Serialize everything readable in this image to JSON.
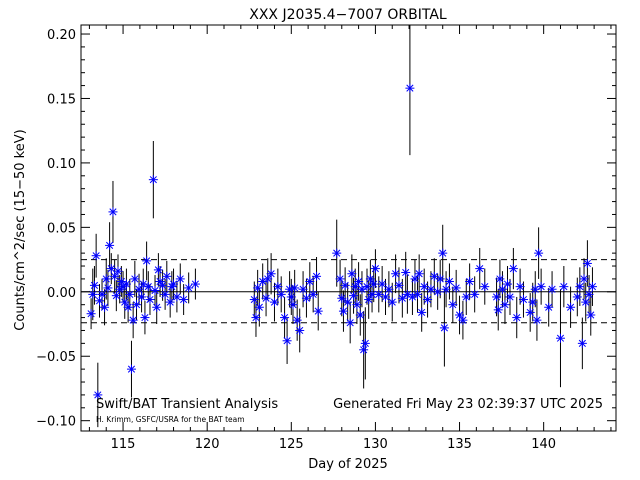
{
  "chart_data": {
    "type": "scatter",
    "title": "XXX J2035.4−7007 ORBITAL",
    "xlabel": "Day of 2025",
    "ylabel": "Counts/cm^2/sec (15−50 keV)",
    "xlim": [
      112.5,
      144.3
    ],
    "ylim": [
      -0.108,
      0.207
    ],
    "x_ticks": [
      115,
      120,
      125,
      130,
      135,
      140
    ],
    "x_tick_labels": [
      "115",
      "120",
      "125",
      "130",
      "135",
      "140"
    ],
    "y_ticks": [
      -0.1,
      -0.05,
      0.0,
      0.05,
      0.1,
      0.15,
      0.2
    ],
    "y_tick_labels": [
      "−0.10",
      "−0.05",
      "0.00",
      "0.05",
      "0.10",
      "0.15",
      "0.20"
    ],
    "reference_lines": {
      "zero": 0.0,
      "upper_dashed": 0.025,
      "lower_dashed": -0.024
    },
    "annotation_left": "Swift/BAT Transient Analysis",
    "annotation_credit": "H. Krimm, GSFC/USRA for the BAT team",
    "annotation_right": "Generated Fri May 23 02:39:37 UTC 2025",
    "marker_color": "#0000ff",
    "grid": false,
    "points": [
      {
        "x": 113.1,
        "y": -0.017,
        "e": 0.012
      },
      {
        "x": 113.2,
        "y": -0.002,
        "e": 0.02
      },
      {
        "x": 113.3,
        "y": 0.005,
        "e": 0.015
      },
      {
        "x": 113.4,
        "y": 0.028,
        "e": 0.017
      },
      {
        "x": 113.5,
        "y": -0.08,
        "e": 0.025
      },
      {
        "x": 113.6,
        "y": -0.007,
        "e": 0.013
      },
      {
        "x": 113.75,
        "y": -0.002,
        "e": 0.012
      },
      {
        "x": 113.9,
        "y": -0.012,
        "e": 0.014
      },
      {
        "x": 114.0,
        "y": 0.01,
        "e": 0.016
      },
      {
        "x": 114.1,
        "y": 0.003,
        "e": 0.014
      },
      {
        "x": 114.2,
        "y": 0.036,
        "e": 0.018
      },
      {
        "x": 114.3,
        "y": 0.018,
        "e": 0.012
      },
      {
        "x": 114.4,
        "y": 0.062,
        "e": 0.024
      },
      {
        "x": 114.5,
        "y": 0.012,
        "e": 0.013
      },
      {
        "x": 114.6,
        "y": -0.003,
        "e": 0.012
      },
      {
        "x": 114.7,
        "y": 0.016,
        "e": 0.013
      },
      {
        "x": 114.8,
        "y": 0.002,
        "e": 0.011
      },
      {
        "x": 114.9,
        "y": 0.008,
        "e": 0.012
      },
      {
        "x": 115.0,
        "y": 0.004,
        "e": 0.012
      },
      {
        "x": 115.1,
        "y": -0.008,
        "e": 0.013
      },
      {
        "x": 115.2,
        "y": 0.006,
        "e": 0.012
      },
      {
        "x": 115.3,
        "y": -0.012,
        "e": 0.012
      },
      {
        "x": 115.4,
        "y": -0.002,
        "e": 0.012
      },
      {
        "x": 115.5,
        "y": -0.06,
        "e": 0.022
      },
      {
        "x": 115.6,
        "y": -0.022,
        "e": 0.014
      },
      {
        "x": 115.7,
        "y": 0.01,
        "e": 0.014
      },
      {
        "x": 115.8,
        "y": -0.01,
        "e": 0.012
      },
      {
        "x": 115.95,
        "y": 0.002,
        "e": 0.012
      },
      {
        "x": 116.1,
        "y": -0.004,
        "e": 0.012
      },
      {
        "x": 116.2,
        "y": 0.006,
        "e": 0.012
      },
      {
        "x": 116.3,
        "y": -0.02,
        "e": 0.013
      },
      {
        "x": 116.4,
        "y": 0.024,
        "e": 0.015
      },
      {
        "x": 116.5,
        "y": 0.004,
        "e": 0.012
      },
      {
        "x": 116.6,
        "y": -0.006,
        "e": 0.012
      },
      {
        "x": 116.8,
        "y": 0.087,
        "e": 0.03
      },
      {
        "x": 116.9,
        "y": 0.001,
        "e": 0.012
      },
      {
        "x": 117.0,
        "y": -0.012,
        "e": 0.013
      },
      {
        "x": 117.1,
        "y": 0.017,
        "e": 0.013
      },
      {
        "x": 117.2,
        "y": 0.008,
        "e": 0.012
      },
      {
        "x": 117.35,
        "y": 0.005,
        "e": 0.012
      },
      {
        "x": 117.5,
        "y": -0.002,
        "e": 0.012
      },
      {
        "x": 117.6,
        "y": 0.012,
        "e": 0.012
      },
      {
        "x": 117.8,
        "y": -0.008,
        "e": 0.012
      },
      {
        "x": 117.9,
        "y": 0.004,
        "e": 0.012
      },
      {
        "x": 118.0,
        "y": 0.006,
        "e": 0.012
      },
      {
        "x": 118.2,
        "y": -0.004,
        "e": 0.012
      },
      {
        "x": 118.4,
        "y": 0.01,
        "e": 0.012
      },
      {
        "x": 118.6,
        "y": -0.006,
        "e": 0.012
      },
      {
        "x": 118.9,
        "y": 0.003,
        "e": 0.012
      },
      {
        "x": 119.3,
        "y": 0.006,
        "e": 0.012
      },
      {
        "x": 122.8,
        "y": -0.006,
        "e": 0.014
      },
      {
        "x": 122.9,
        "y": -0.02,
        "e": 0.015
      },
      {
        "x": 123.0,
        "y": 0.003,
        "e": 0.014
      },
      {
        "x": 123.1,
        "y": -0.012,
        "e": 0.015
      },
      {
        "x": 123.3,
        "y": 0.008,
        "e": 0.014
      },
      {
        "x": 123.5,
        "y": -0.005,
        "e": 0.014
      },
      {
        "x": 123.6,
        "y": 0.01,
        "e": 0.016
      },
      {
        "x": 123.8,
        "y": 0.014,
        "e": 0.016
      },
      {
        "x": 124.0,
        "y": -0.008,
        "e": 0.015
      },
      {
        "x": 124.2,
        "y": 0.004,
        "e": 0.014
      },
      {
        "x": 124.4,
        "y": -0.002,
        "e": 0.014
      },
      {
        "x": 124.6,
        "y": -0.02,
        "e": 0.016
      },
      {
        "x": 124.75,
        "y": -0.038,
        "e": 0.018
      },
      {
        "x": 124.9,
        "y": 0.002,
        "e": 0.014
      },
      {
        "x": 125.0,
        "y": -0.004,
        "e": 0.014
      },
      {
        "x": 125.1,
        "y": -0.01,
        "e": 0.015
      },
      {
        "x": 125.2,
        "y": 0.003,
        "e": 0.014
      },
      {
        "x": 125.35,
        "y": -0.022,
        "e": 0.016
      },
      {
        "x": 125.5,
        "y": -0.03,
        "e": 0.017
      },
      {
        "x": 125.7,
        "y": 0.002,
        "e": 0.014
      },
      {
        "x": 125.9,
        "y": -0.005,
        "e": 0.015
      },
      {
        "x": 126.1,
        "y": 0.008,
        "e": 0.015
      },
      {
        "x": 126.3,
        "y": -0.002,
        "e": 0.014
      },
      {
        "x": 126.5,
        "y": 0.012,
        "e": 0.015
      },
      {
        "x": 126.6,
        "y": -0.015,
        "e": 0.015
      },
      {
        "x": 127.7,
        "y": 0.03,
        "e": 0.026
      },
      {
        "x": 127.9,
        "y": 0.01,
        "e": 0.015
      },
      {
        "x": 128.0,
        "y": -0.005,
        "e": 0.014
      },
      {
        "x": 128.1,
        "y": -0.015,
        "e": 0.016
      },
      {
        "x": 128.2,
        "y": 0.005,
        "e": 0.014
      },
      {
        "x": 128.35,
        "y": -0.008,
        "e": 0.015
      },
      {
        "x": 128.5,
        "y": -0.024,
        "e": 0.016
      },
      {
        "x": 128.6,
        "y": 0.014,
        "e": 0.015
      },
      {
        "x": 128.7,
        "y": -0.003,
        "e": 0.014
      },
      {
        "x": 128.8,
        "y": 0.004,
        "e": 0.014
      },
      {
        "x": 128.9,
        "y": -0.01,
        "e": 0.015
      },
      {
        "x": 129.0,
        "y": 0.008,
        "e": 0.015
      },
      {
        "x": 129.1,
        "y": -0.018,
        "e": 0.016
      },
      {
        "x": 129.2,
        "y": 0.002,
        "e": 0.014
      },
      {
        "x": 129.3,
        "y": -0.045,
        "e": 0.03
      },
      {
        "x": 129.4,
        "y": -0.04,
        "e": 0.028
      },
      {
        "x": 129.5,
        "y": 0.004,
        "e": 0.014
      },
      {
        "x": 129.6,
        "y": -0.006,
        "e": 0.015
      },
      {
        "x": 129.7,
        "y": 0.01,
        "e": 0.015
      },
      {
        "x": 129.8,
        "y": -0.002,
        "e": 0.014
      },
      {
        "x": 129.9,
        "y": 0.006,
        "e": 0.014
      },
      {
        "x": 130.0,
        "y": 0.018,
        "e": 0.015
      },
      {
        "x": 130.2,
        "y": -0.002,
        "e": 0.014
      },
      {
        "x": 130.4,
        "y": 0.006,
        "e": 0.014
      },
      {
        "x": 130.6,
        "y": -0.004,
        "e": 0.014
      },
      {
        "x": 130.8,
        "y": 0.002,
        "e": 0.014
      },
      {
        "x": 131.0,
        "y": -0.008,
        "e": 0.015
      },
      {
        "x": 131.2,
        "y": 0.014,
        "e": 0.015
      },
      {
        "x": 131.4,
        "y": 0.005,
        "e": 0.014
      },
      {
        "x": 131.6,
        "y": -0.005,
        "e": 0.015
      },
      {
        "x": 131.8,
        "y": 0.015,
        "e": 0.016
      },
      {
        "x": 131.9,
        "y": -0.002,
        "e": 0.015
      },
      {
        "x": 132.05,
        "y": 0.158,
        "e": 0.052
      },
      {
        "x": 132.2,
        "y": -0.004,
        "e": 0.014
      },
      {
        "x": 132.35,
        "y": 0.01,
        "e": 0.015
      },
      {
        "x": 132.5,
        "y": -0.002,
        "e": 0.014
      },
      {
        "x": 132.6,
        "y": 0.014,
        "e": 0.015
      },
      {
        "x": 132.75,
        "y": -0.016,
        "e": 0.015
      },
      {
        "x": 132.9,
        "y": 0.004,
        "e": 0.014
      },
      {
        "x": 133.1,
        "y": -0.006,
        "e": 0.014
      },
      {
        "x": 133.3,
        "y": 0.002,
        "e": 0.014
      },
      {
        "x": 133.5,
        "y": 0.012,
        "e": 0.014
      },
      {
        "x": 133.7,
        "y": 0.0,
        "e": 0.014
      },
      {
        "x": 133.85,
        "y": 0.01,
        "e": 0.015
      },
      {
        "x": 134.0,
        "y": 0.03,
        "e": 0.022
      },
      {
        "x": 134.1,
        "y": -0.028,
        "e": 0.03
      },
      {
        "x": 134.2,
        "y": 0.002,
        "e": 0.014
      },
      {
        "x": 134.4,
        "y": 0.008,
        "e": 0.014
      },
      {
        "x": 134.6,
        "y": -0.01,
        "e": 0.014
      },
      {
        "x": 134.8,
        "y": 0.003,
        "e": 0.014
      },
      {
        "x": 135.0,
        "y": -0.018,
        "e": 0.015
      },
      {
        "x": 135.2,
        "y": -0.022,
        "e": 0.015
      },
      {
        "x": 135.4,
        "y": -0.004,
        "e": 0.014
      },
      {
        "x": 135.6,
        "y": 0.008,
        "e": 0.014
      },
      {
        "x": 135.9,
        "y": -0.002,
        "e": 0.014
      },
      {
        "x": 136.2,
        "y": 0.018,
        "e": 0.016
      },
      {
        "x": 136.5,
        "y": 0.004,
        "e": 0.014
      },
      {
        "x": 137.2,
        "y": -0.004,
        "e": 0.015
      },
      {
        "x": 137.3,
        "y": -0.014,
        "e": 0.016
      },
      {
        "x": 137.4,
        "y": 0.01,
        "e": 0.015
      },
      {
        "x": 137.55,
        "y": 0.002,
        "e": 0.014
      },
      {
        "x": 137.7,
        "y": -0.01,
        "e": 0.015
      },
      {
        "x": 137.85,
        "y": 0.006,
        "e": 0.014
      },
      {
        "x": 138.0,
        "y": -0.004,
        "e": 0.014
      },
      {
        "x": 138.2,
        "y": 0.018,
        "e": 0.016
      },
      {
        "x": 138.4,
        "y": -0.02,
        "e": 0.016
      },
      {
        "x": 138.6,
        "y": 0.004,
        "e": 0.014
      },
      {
        "x": 138.8,
        "y": -0.006,
        "e": 0.014
      },
      {
        "x": 139.2,
        "y": -0.016,
        "e": 0.015
      },
      {
        "x": 139.35,
        "y": -0.008,
        "e": 0.015
      },
      {
        "x": 139.5,
        "y": 0.002,
        "e": 0.014
      },
      {
        "x": 139.6,
        "y": -0.022,
        "e": 0.016
      },
      {
        "x": 139.7,
        "y": 0.03,
        "e": 0.02
      },
      {
        "x": 139.85,
        "y": 0.004,
        "e": 0.014
      },
      {
        "x": 140.3,
        "y": -0.012,
        "e": 0.015
      },
      {
        "x": 140.5,
        "y": 0.002,
        "e": 0.014
      },
      {
        "x": 141.0,
        "y": -0.036,
        "e": 0.038
      },
      {
        "x": 141.2,
        "y": 0.004,
        "e": 0.016
      },
      {
        "x": 141.6,
        "y": -0.012,
        "e": 0.016
      },
      {
        "x": 142.0,
        "y": -0.004,
        "e": 0.015
      },
      {
        "x": 142.15,
        "y": 0.004,
        "e": 0.015
      },
      {
        "x": 142.3,
        "y": -0.04,
        "e": 0.02
      },
      {
        "x": 142.4,
        "y": 0.01,
        "e": 0.016
      },
      {
        "x": 142.5,
        "y": -0.008,
        "e": 0.015
      },
      {
        "x": 142.6,
        "y": 0.022,
        "e": 0.018
      },
      {
        "x": 142.7,
        "y": -0.002,
        "e": 0.015
      },
      {
        "x": 142.8,
        "y": -0.018,
        "e": 0.016
      },
      {
        "x": 142.9,
        "y": 0.004,
        "e": 0.015
      }
    ]
  }
}
